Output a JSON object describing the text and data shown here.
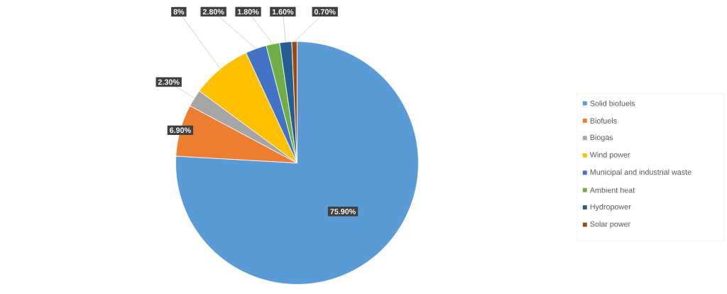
{
  "chart_data": {
    "type": "pie",
    "categories": [
      "Solid biofuels",
      "Biofuels",
      "Biogas",
      "Wind power",
      "Municipal and industrial waste",
      "Ambient heat",
      "Hydropower",
      "Solar power"
    ],
    "values": [
      75.9,
      6.9,
      2.3,
      8,
      2.8,
      1.8,
      1.6,
      0.7
    ],
    "colors": [
      "#5b9bd5",
      "#ed7d31",
      "#a5a5a5",
      "#ffc000",
      "#4472c4",
      "#70ad47",
      "#255e91",
      "#9e480e"
    ],
    "value_labels": [
      "75.90%",
      "6.90%",
      "2.30%",
      "8%",
      "2.80%",
      "1.80%",
      "1.60%",
      "0.70%"
    ],
    "legend": "right"
  }
}
